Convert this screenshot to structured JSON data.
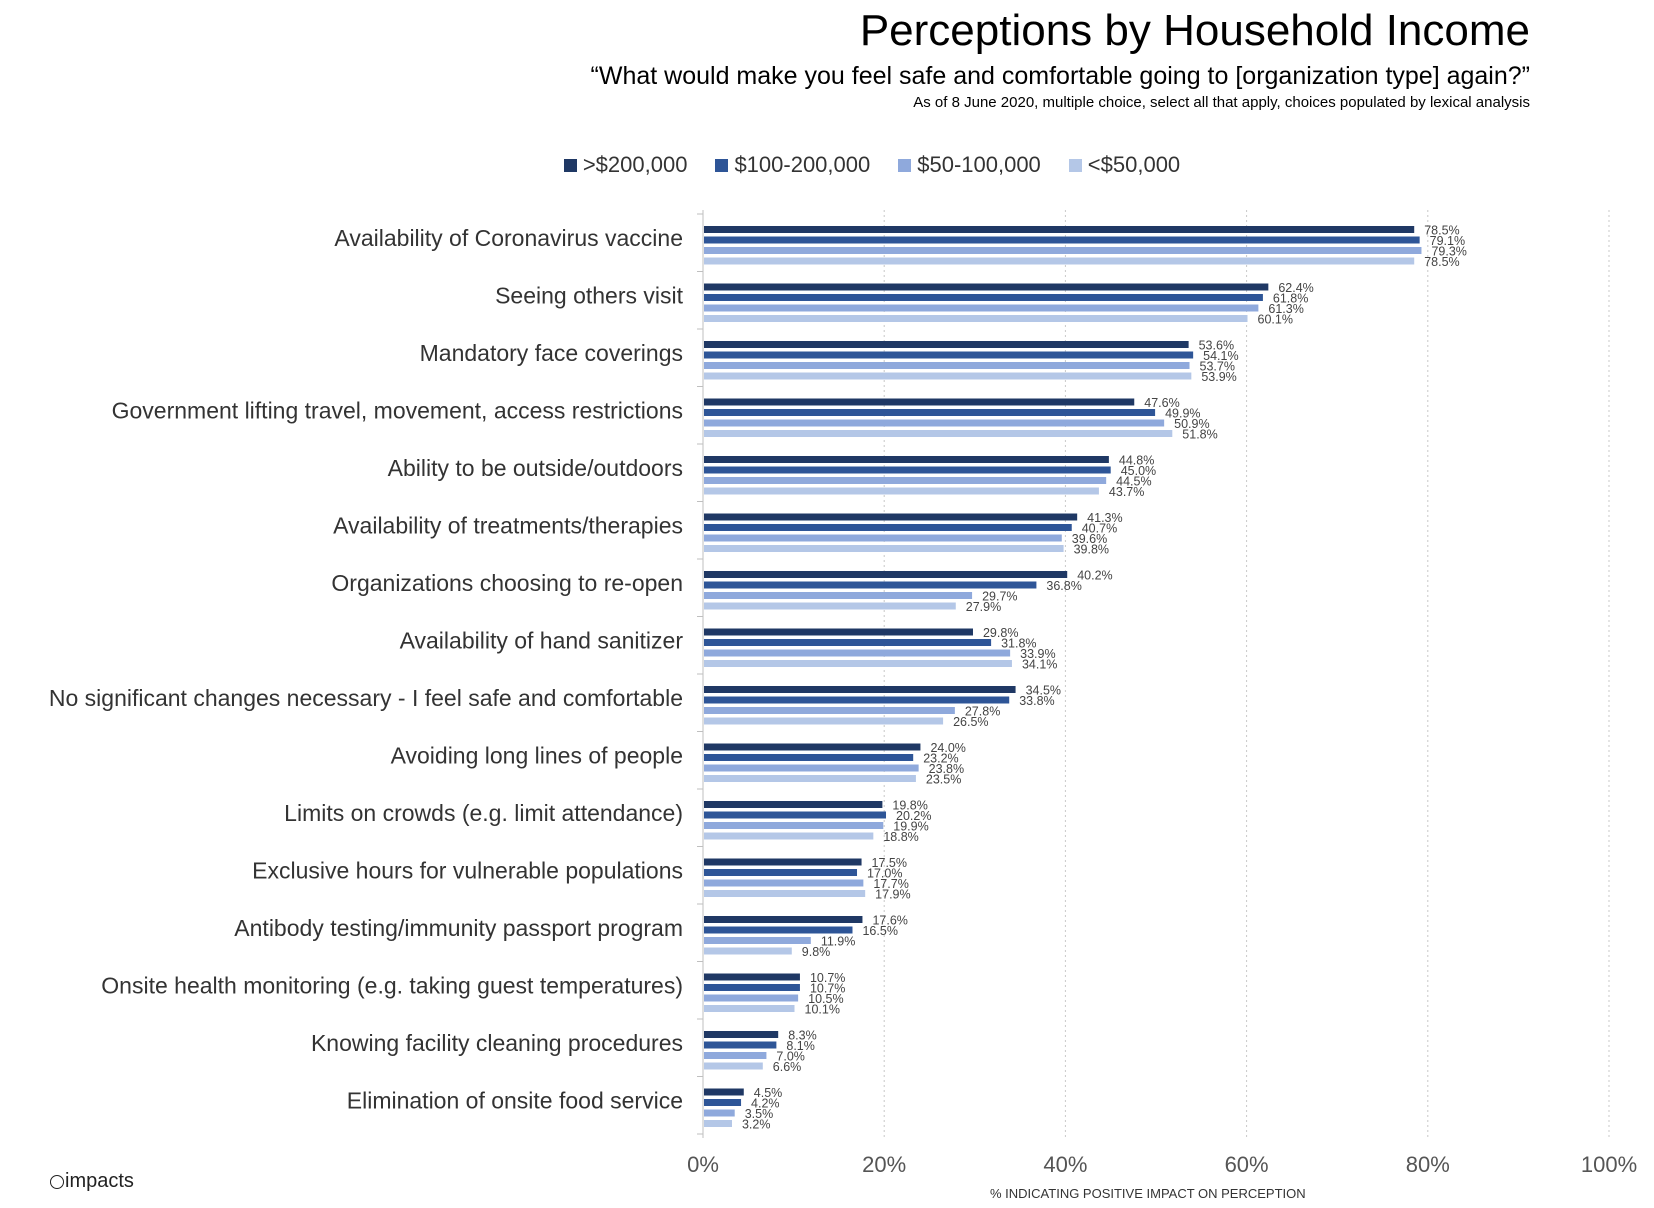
{
  "header": {
    "title": "Perceptions by Household Income",
    "subtitle": "“What would make you feel safe and comfortable going to [organization type] again?”",
    "note": "As of 8 June 2020, multiple choice, select all that apply, choices populated by lexical analysis"
  },
  "branding": {
    "logo_text": "impacts"
  },
  "chart_data": {
    "type": "bar",
    "orientation": "horizontal",
    "title": "Perceptions by Household Income",
    "xlabel": "% INDICATING POSITIVE IMPACT ON PERCEPTION",
    "ylabel": "",
    "xlim": [
      0,
      100
    ],
    "xticks": [
      "0%",
      "20%",
      "40%",
      "60%",
      "80%",
      "100%"
    ],
    "grid": "vertical dotted",
    "legend_position": "top-center",
    "categories": [
      "Availability of Coronavirus vaccine",
      "Seeing others visit",
      "Mandatory face coverings",
      "Government lifting travel, movement, access restrictions",
      "Ability to be outside/outdoors",
      "Availability of treatments/therapies",
      "Organizations choosing to re-open",
      "Availability of hand sanitizer",
      "No significant changes necessary - I feel safe and comfortable",
      "Avoiding long lines of people",
      "Limits on crowds (e.g. limit attendance)",
      "Exclusive hours for vulnerable populations",
      "Antibody testing/immunity passport program",
      "Onsite health monitoring (e.g. taking guest temperatures)",
      "Knowing facility cleaning procedures",
      "Elimination of onsite food service"
    ],
    "series": [
      {
        "name": ">$200,000",
        "color": "#1f3864",
        "values": [
          78.5,
          62.4,
          53.6,
          47.6,
          44.8,
          41.3,
          40.2,
          29.8,
          34.5,
          24.0,
          19.8,
          17.5,
          17.6,
          10.7,
          8.3,
          4.5
        ]
      },
      {
        "name": "$100-200,000",
        "color": "#2e5597",
        "values": [
          79.1,
          61.8,
          54.1,
          49.9,
          45.0,
          40.7,
          36.8,
          31.8,
          33.8,
          23.2,
          20.2,
          17.0,
          16.5,
          10.7,
          8.1,
          4.2
        ]
      },
      {
        "name": "$50-100,000",
        "color": "#8fa9dc",
        "values": [
          79.3,
          61.3,
          53.7,
          50.9,
          44.5,
          39.6,
          29.7,
          33.9,
          27.8,
          23.8,
          19.9,
          17.7,
          11.9,
          10.5,
          7.0,
          3.5
        ]
      },
      {
        "name": "<$50,000",
        "color": "#b4c7e7",
        "values": [
          78.5,
          60.1,
          53.9,
          51.8,
          43.7,
          39.8,
          27.9,
          34.1,
          26.5,
          23.5,
          18.8,
          17.9,
          9.8,
          10.1,
          6.6,
          3.2
        ]
      }
    ]
  }
}
